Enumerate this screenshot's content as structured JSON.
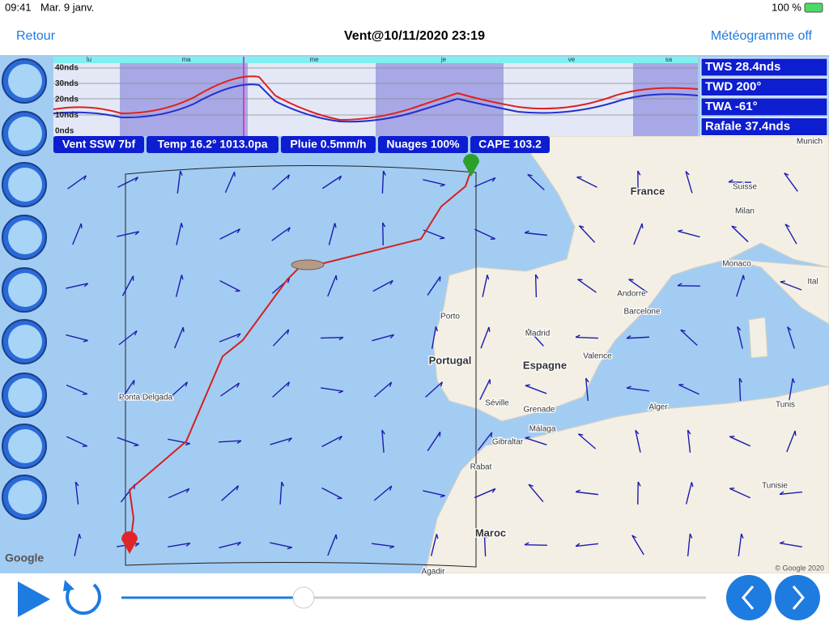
{
  "status_bar": {
    "time": "09:41",
    "date": "Mar. 9 janv.",
    "battery": "100 %"
  },
  "nav_bar": {
    "back": "Retour",
    "title": "Vent@10/11/2020 23:19",
    "action": "Météogramme off"
  },
  "meteogram": {
    "days": [
      "lu",
      "ma",
      "me",
      "je",
      "ve",
      "sa"
    ],
    "y_labels": [
      "40nds",
      "30nds",
      "20nds",
      "10nds",
      "0nds"
    ]
  },
  "right_panel": [
    "TWS 28.4nds",
    "TWD 200°",
    "TWA -61°",
    "Rafale 37.4nds"
  ],
  "info_bar": [
    "Vent SSW 7bf",
    "Temp 16.2° 1013.0pa",
    "Pluie 0.5mm/h",
    "Nuages 100%",
    "CAPE 103.2"
  ],
  "map": {
    "labels": [
      "Munich",
      "France",
      "Suisse",
      "Milan",
      "Monaco",
      "Ital",
      "Andorre",
      "Barcelone",
      "Porto",
      "Madrid",
      "Portugal",
      "Espagne",
      "Valence",
      "Séville",
      "Grenade",
      "Málaga",
      "Gibraltar",
      "Alger",
      "Tunis",
      "Rabat",
      "Tunisie",
      "Maroc",
      "Ponta Delgada",
      "Agadir"
    ],
    "logo": "Google",
    "attribution": "© Google 2020"
  }
}
